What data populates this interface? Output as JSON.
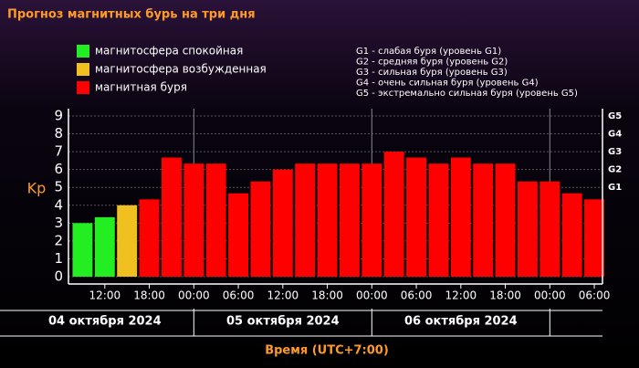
{
  "chart_data": {
    "type": "bar",
    "title": "Прогноз магнитных бурь на три дня",
    "y_label": "Kp",
    "x_label": "Время (UTC+7:00)",
    "legend": [
      {
        "name": "магнитосфера спокойная",
        "color": "#22ee22"
      },
      {
        "name": "магнитосфера возбужденная",
        "color": "#f0c020"
      },
      {
        "name": "магнитная буря",
        "color": "#ff0000"
      }
    ],
    "storm_levels": [
      "G1 - слабая буря (уровень G1)",
      "G2 - средняя буря (уровень G2)",
      "G3 - сильная буря (уровень G3)",
      "G4 - очень сильная буря (уровень G4)",
      "G5 - экстремально сильная буря (уровень G5)"
    ],
    "x": [
      9,
      12,
      15,
      18,
      21,
      24,
      27,
      30,
      33,
      36,
      39,
      42,
      45,
      48,
      51,
      54,
      57,
      60,
      63,
      66,
      69,
      72,
      75,
      78
    ],
    "values": [
      3.0,
      3.33,
      4.0,
      4.33,
      6.67,
      6.33,
      6.33,
      4.67,
      5.33,
      6.0,
      6.33,
      6.33,
      6.33,
      6.33,
      7.0,
      6.67,
      6.33,
      6.67,
      6.33,
      6.33,
      5.33,
      5.33,
      4.67,
      4.33
    ],
    "colors": [
      "#22ee22",
      "#22ee22",
      "#f0c020",
      "#ff0000",
      "#ff0000",
      "#ff0000",
      "#ff0000",
      "#ff0000",
      "#ff0000",
      "#ff0000",
      "#ff0000",
      "#ff0000",
      "#ff0000",
      "#ff0000",
      "#ff0000",
      "#ff0000",
      "#ff0000",
      "#ff0000",
      "#ff0000",
      "#ff0000",
      "#ff0000",
      "#ff0000",
      "#ff0000",
      "#ff0000"
    ],
    "xlim": [
      7.1,
      79.1
    ],
    "xticks": [
      {
        "value": 12,
        "label": "12:00"
      },
      {
        "value": 18,
        "label": "18:00"
      },
      {
        "value": 24,
        "label": "00:00"
      },
      {
        "value": 30,
        "label": "06:00"
      },
      {
        "value": 36,
        "label": "12:00"
      },
      {
        "value": 42,
        "label": "18:00"
      },
      {
        "value": 48,
        "label": "00:00"
      },
      {
        "value": 54,
        "label": "06:00"
      },
      {
        "value": 60,
        "label": "12:00"
      },
      {
        "value": 66,
        "label": "18:00"
      },
      {
        "value": 72,
        "label": "00:00"
      },
      {
        "value": 78,
        "label": "06:00"
      }
    ],
    "day_lines": [
      24,
      48,
      72
    ],
    "days": [
      {
        "value": 12,
        "label": "04 октября 2024"
      },
      {
        "value": 36,
        "label": "05 октября 2024"
      },
      {
        "value": 60,
        "label": "06 октября 2024"
      }
    ],
    "ylim": [
      0,
      9
    ],
    "yticks": [
      0,
      1,
      2,
      3,
      4,
      5,
      6,
      7,
      8,
      9
    ],
    "gticks": [
      {
        "value": 5,
        "label": "G1"
      },
      {
        "value": 6,
        "label": "G2"
      },
      {
        "value": 7,
        "label": "G3"
      },
      {
        "value": 8,
        "label": "G4"
      },
      {
        "value": 9,
        "label": "G5"
      }
    ],
    "grid": true
  }
}
